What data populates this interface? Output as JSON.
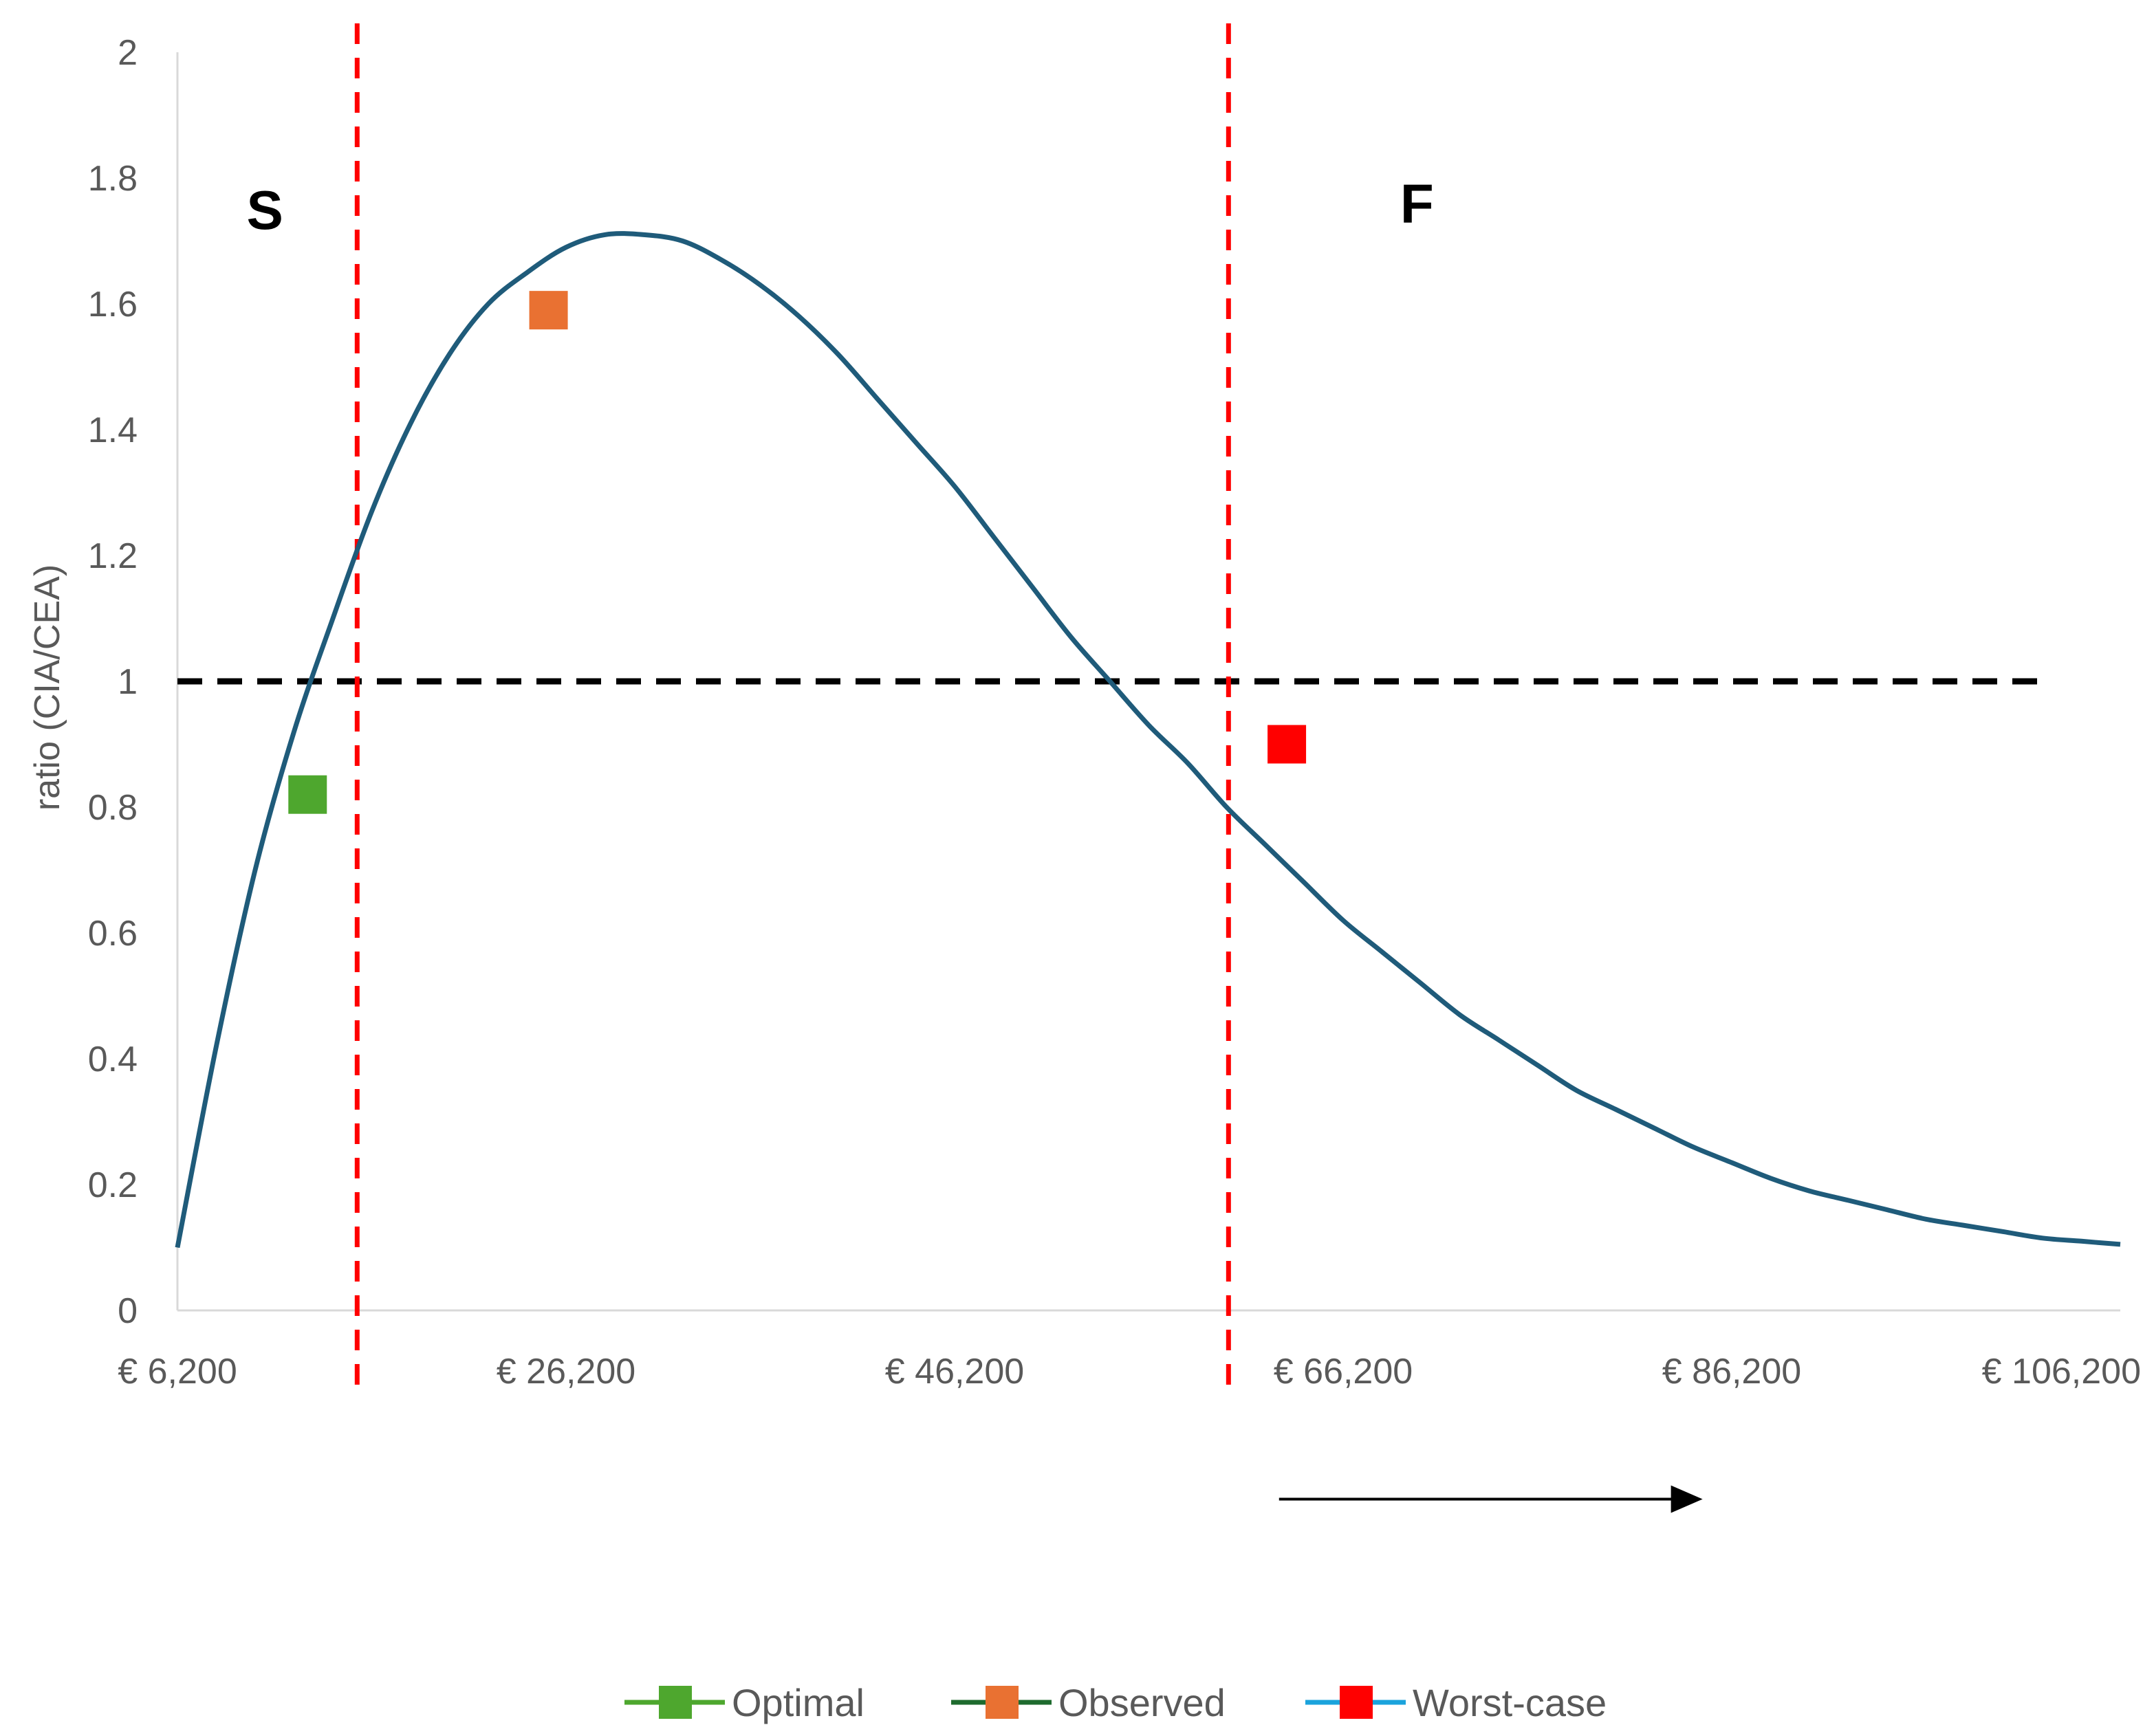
{
  "chart_data": {
    "type": "line",
    "title": "",
    "xlabel": "",
    "ylabel": "ratio (CIA/CEA)",
    "xlim": [
      6200,
      106200
    ],
    "ylim": [
      0,
      2
    ],
    "y_ticks": [
      0,
      0.2,
      0.4,
      0.6,
      0.8,
      1,
      1.2,
      1.4,
      1.6,
      1.8,
      2
    ],
    "y_tick_labels": [
      "0",
      "0.2",
      "0.4",
      "0.6",
      "0.8",
      "1",
      "1.2",
      "1.4",
      "1.6",
      "1.8",
      "2"
    ],
    "x_ticks": [
      6200,
      26200,
      46200,
      66200,
      86200,
      106200
    ],
    "x_tick_labels": [
      "€ 6,200",
      "€ 26,200",
      "€ 46,200",
      "€ 66,200",
      "€ 86,200",
      "€ 106,200"
    ],
    "grid": false,
    "curve": {
      "color": "#1F5B7A",
      "x": [
        6200,
        8200,
        10200,
        12200,
        14200,
        16200,
        18200,
        20200,
        22200,
        24200,
        26200,
        28200,
        30200,
        32200,
        34200,
        36200,
        38200,
        40200,
        42200,
        44200,
        46200,
        48200,
        50200,
        52200,
        54200,
        56200,
        58200,
        60200,
        62200,
        64200,
        66200,
        68200,
        70200,
        72200,
        74200,
        76200,
        78200,
        80200,
        82200,
        84200,
        86200,
        88200,
        90200,
        92200,
        94200,
        96200,
        98200,
        100200,
        102200,
        104200,
        106200
      ],
      "y": [
        0.1,
        0.42,
        0.7,
        0.92,
        1.1,
        1.27,
        1.41,
        1.52,
        1.6,
        1.65,
        1.69,
        1.71,
        1.71,
        1.7,
        1.67,
        1.63,
        1.58,
        1.52,
        1.45,
        1.38,
        1.31,
        1.23,
        1.15,
        1.07,
        1.0,
        0.93,
        0.87,
        0.8,
        0.74,
        0.68,
        0.62,
        0.57,
        0.52,
        0.47,
        0.43,
        0.39,
        0.35,
        0.32,
        0.29,
        0.26,
        0.235,
        0.21,
        0.19,
        0.175,
        0.16,
        0.145,
        0.135,
        0.125,
        0.115,
        0.11,
        0.105
      ]
    },
    "points": [
      {
        "name": "Optimal",
        "x": 12900,
        "y": 0.82,
        "color": "#4EA72E"
      },
      {
        "name": "Observed",
        "x": 25300,
        "y": 1.59,
        "color": "#E97132"
      },
      {
        "name": "Worst-case",
        "x": 63300,
        "y": 0.9,
        "color": "#FF0000"
      }
    ],
    "reference_lines": {
      "horizontal": {
        "y": 1,
        "color": "#000000"
      },
      "vertical": [
        {
          "x": 15450,
          "color": "#FF0000"
        },
        {
          "x": 60300,
          "color": "#FF0000"
        }
      ]
    },
    "region_labels": [
      {
        "text": "S",
        "x": 10700,
        "y": 1.75
      },
      {
        "text": "F",
        "x": 70000,
        "y": 1.76
      }
    ],
    "arrow": {
      "x_start": 62900,
      "x_end": 84700,
      "y": -0.3
    },
    "legend": {
      "placement": "bottom",
      "entries": [
        {
          "label": "Optimal",
          "line_color": "#4EA72E",
          "marker_color": "#4EA72E"
        },
        {
          "label": "Observed",
          "line_color": "#1E6B2E",
          "marker_color": "#E97132"
        },
        {
          "label": "Worst-case",
          "line_color": "#1BA3DC",
          "marker_color": "#FF0000"
        }
      ]
    }
  }
}
